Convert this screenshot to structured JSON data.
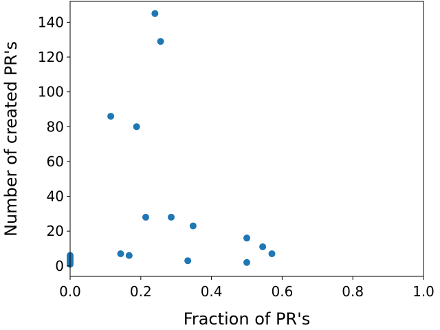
{
  "chart_data": {
    "type": "scatter",
    "title": "",
    "xlabel": "Fraction of PR's",
    "ylabel": "Number of created PR's",
    "xlim": [
      0.0,
      1.0
    ],
    "ylim": [
      -6,
      152
    ],
    "xticks": [
      0.0,
      0.2,
      0.4,
      0.6,
      0.8,
      1.0
    ],
    "xtick_labels": [
      "0.0",
      "0.2",
      "0.4",
      "0.6",
      "0.8",
      "1.0"
    ],
    "yticks": [
      0,
      20,
      40,
      60,
      80,
      100,
      120,
      140
    ],
    "ytick_labels": [
      "0",
      "20",
      "40",
      "60",
      "80",
      "100",
      "120",
      "140"
    ],
    "grid": false,
    "marker_color": "#1f77b4",
    "points": [
      {
        "x": 0.24,
        "y": 145
      },
      {
        "x": 0.256,
        "y": 129
      },
      {
        "x": 0.115,
        "y": 86
      },
      {
        "x": 0.188,
        "y": 80
      },
      {
        "x": 0.214,
        "y": 28
      },
      {
        "x": 0.286,
        "y": 28
      },
      {
        "x": 0.348,
        "y": 23
      },
      {
        "x": 0.5,
        "y": 16
      },
      {
        "x": 0.545,
        "y": 11
      },
      {
        "x": 0.571,
        "y": 7
      },
      {
        "x": 0.143,
        "y": 7
      },
      {
        "x": 0.167,
        "y": 6
      },
      {
        "x": 0.333,
        "y": 3
      },
      {
        "x": 0.5,
        "y": 2
      },
      {
        "x": 0.0,
        "y": 6
      },
      {
        "x": 0.0,
        "y": 5
      },
      {
        "x": 0.0,
        "y": 4
      },
      {
        "x": 0.0,
        "y": 3
      },
      {
        "x": 0.0,
        "y": 2
      },
      {
        "x": 0.0,
        "y": 1
      }
    ]
  }
}
